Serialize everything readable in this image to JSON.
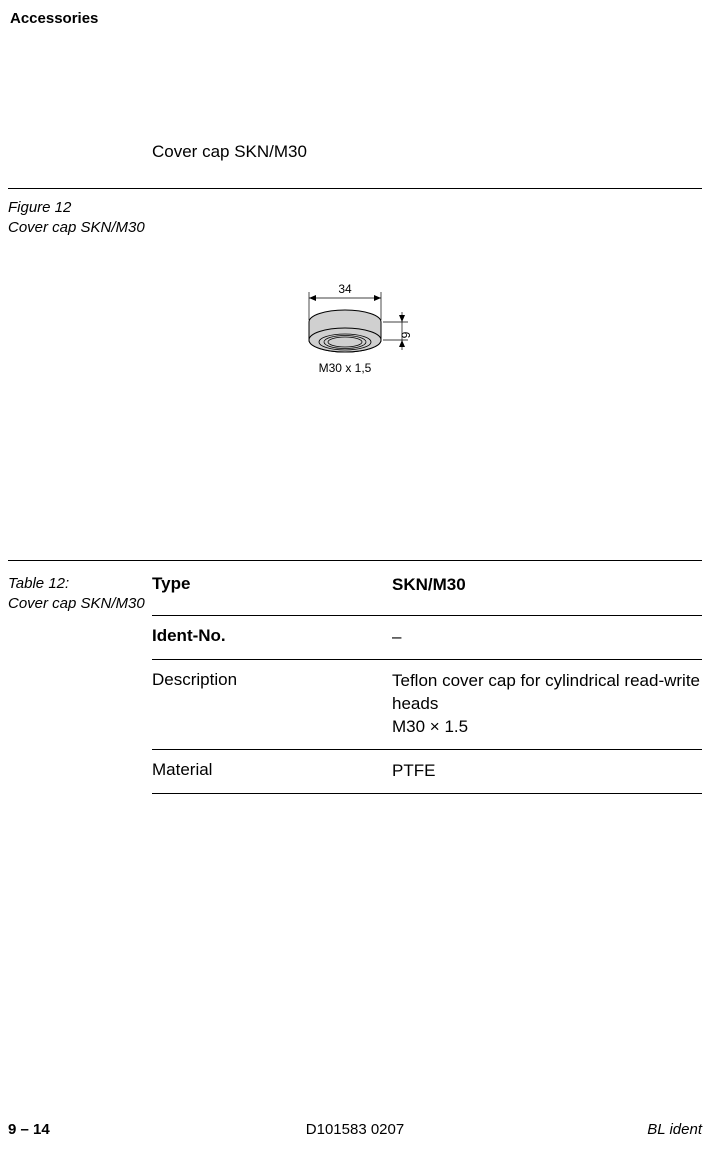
{
  "header": {
    "title": "Accessories"
  },
  "section": {
    "title": "Cover cap SKN/M30"
  },
  "figure": {
    "label": "Figure 12",
    "caption": "Cover cap SKN/M30",
    "dim_width": "34",
    "dim_height": "9",
    "thread": "M30 x 1,5",
    "fill_color": "#d0d0d0",
    "stroke_color": "#000000"
  },
  "table": {
    "label": "Table 12:",
    "caption": "Cover cap SKN/M30",
    "rows": [
      {
        "label": "Type",
        "value": "SKN/M30",
        "label_bold": true,
        "value_bold": true
      },
      {
        "label": "Ident-No.",
        "value": "–",
        "label_bold": true,
        "value_bold": false
      },
      {
        "label": "Description",
        "value": "Teflon cover cap for cylindrical read-write heads\nM30 × 1.5",
        "label_bold": false,
        "value_bold": false
      },
      {
        "label": "Material",
        "value": "PTFE",
        "label_bold": false,
        "value_bold": false
      }
    ]
  },
  "footer": {
    "page": "9 – 14",
    "docnum": "D101583 0207",
    "brand": "BL ident"
  }
}
